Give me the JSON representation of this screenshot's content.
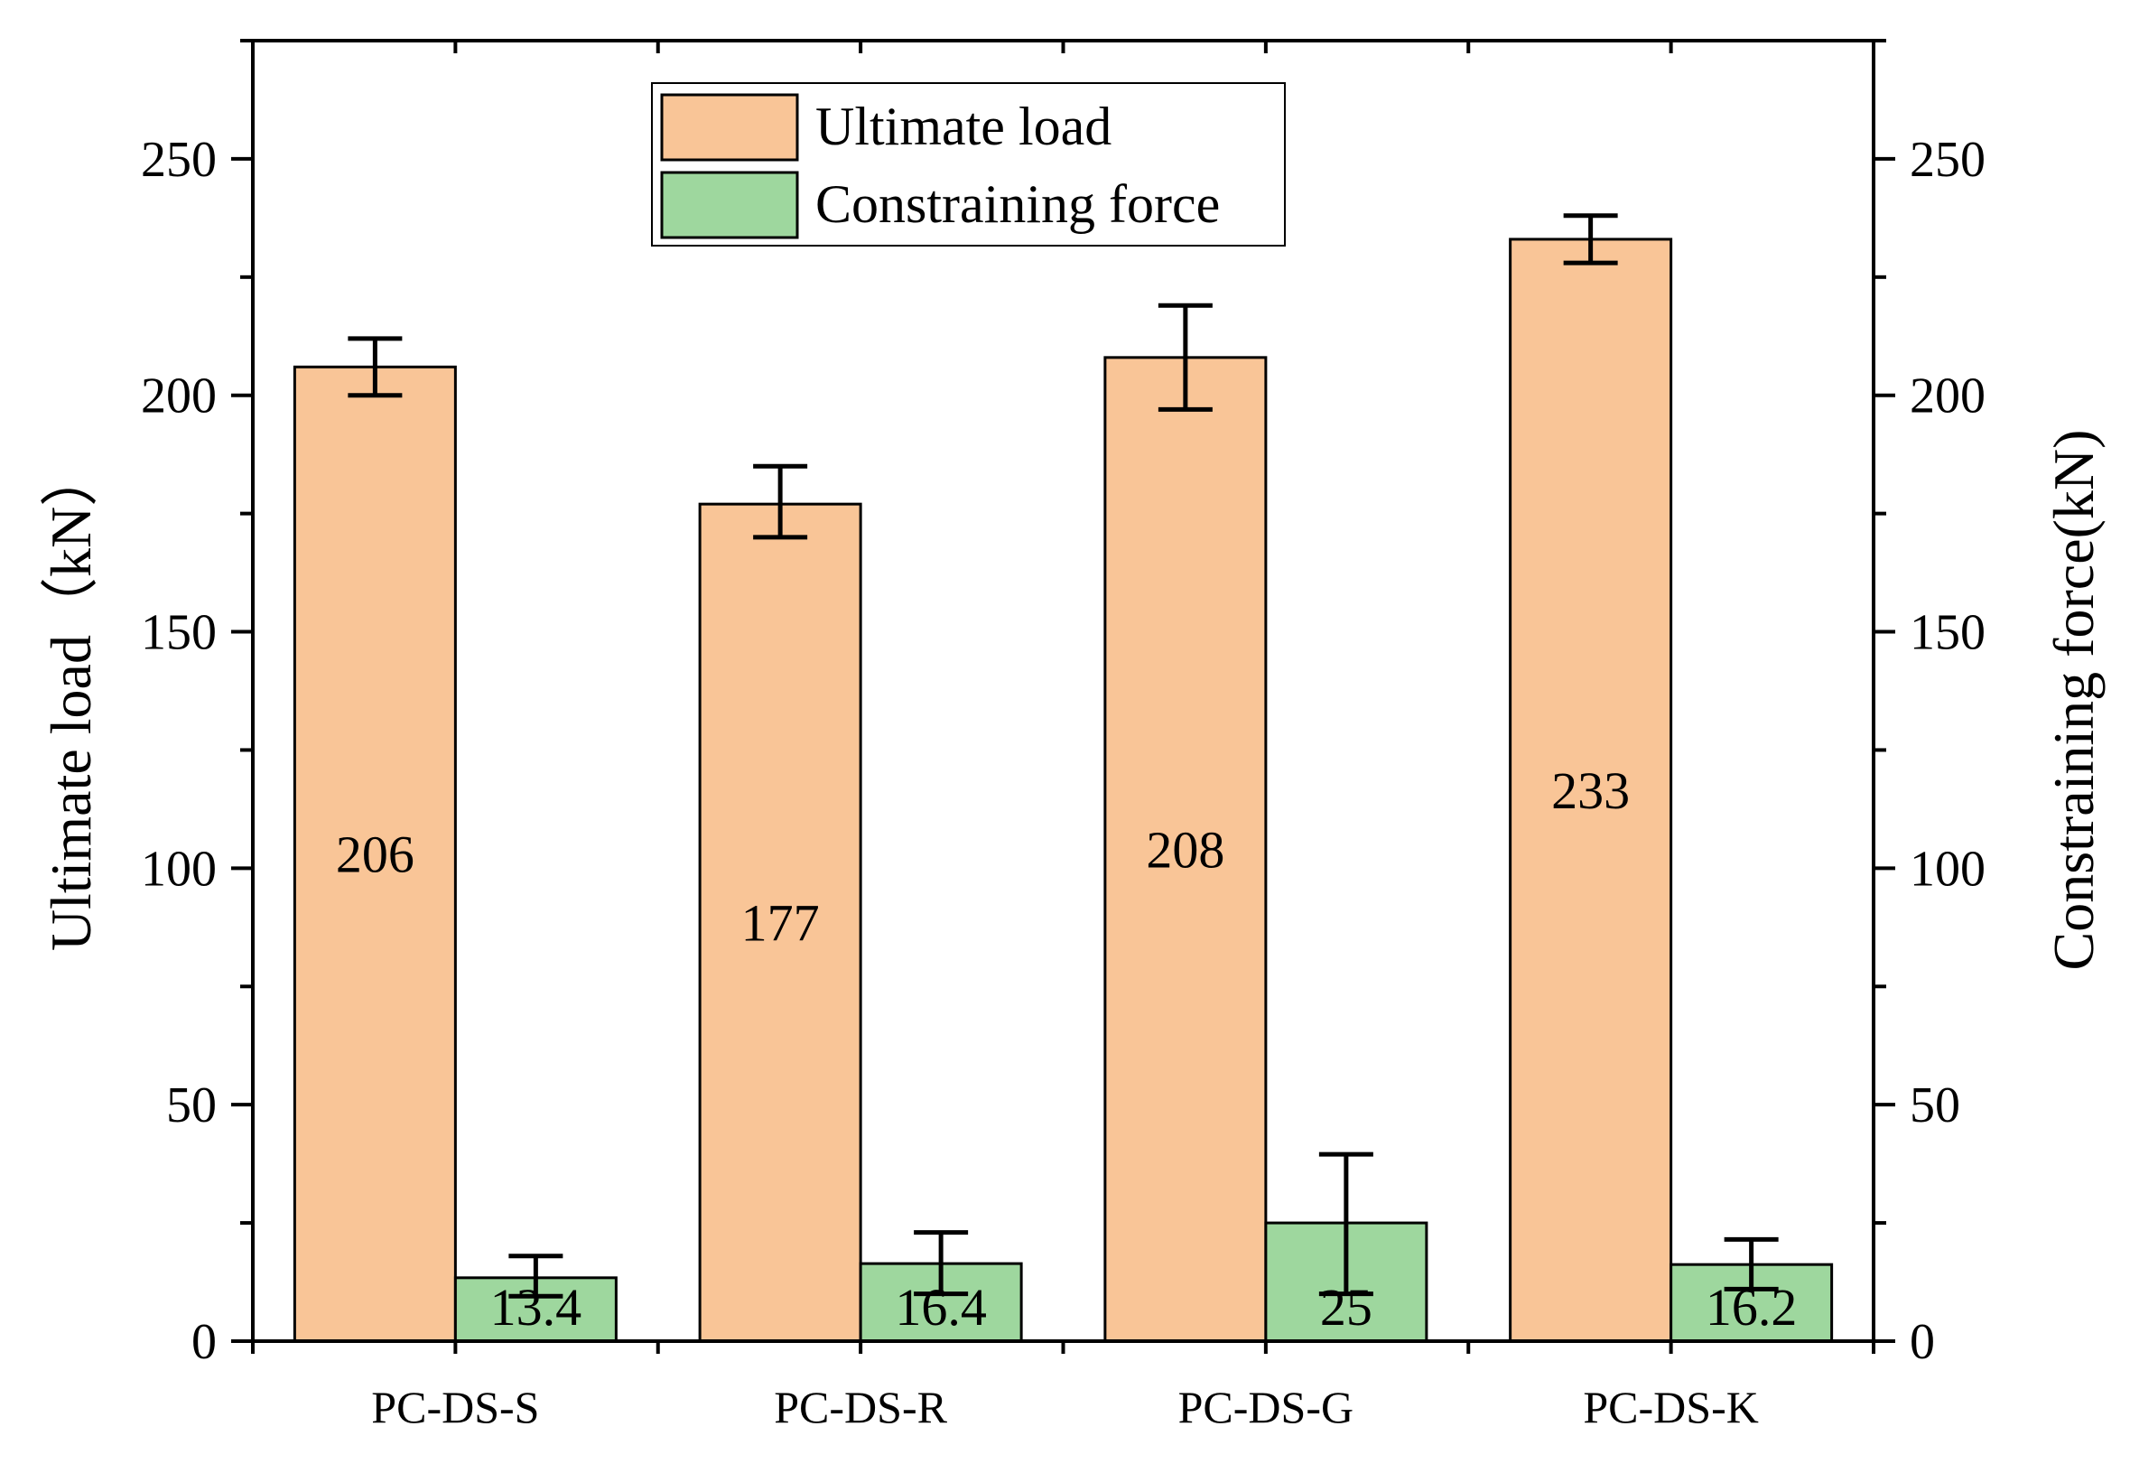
{
  "chart_data": {
    "type": "bar",
    "categories": [
      "PC-DS-S",
      "PC-DS-R",
      "PC-DS-G",
      "PC-DS-K"
    ],
    "series": [
      {
        "name": "Ultimate load",
        "axis": "left",
        "color": "#F9C597",
        "values": [
          206,
          177,
          208,
          233
        ],
        "labels": [
          "206",
          "177",
          "208",
          "233"
        ],
        "error_low": [
          200,
          170,
          197,
          228
        ],
        "error_high": [
          212,
          185,
          219,
          238
        ]
      },
      {
        "name": "Constraining force",
        "axis": "right",
        "color": "#9ED79E",
        "values": [
          13.4,
          16.4,
          25,
          16.2
        ],
        "labels": [
          "13.4",
          "16.4",
          "25",
          "16.2"
        ],
        "error_low": [
          9.5,
          10,
          10,
          11
        ],
        "error_high": [
          18,
          23,
          39.5,
          21.5
        ]
      }
    ],
    "ylabel_left": "Ultimate load（kN）",
    "ylabel_right": "Constraining force(kN)",
    "ylim": [
      0,
      275
    ],
    "ylim_right": [
      0,
      275
    ],
    "yticks": [
      0,
      50,
      100,
      150,
      200,
      250
    ],
    "legend_position": "top-center"
  }
}
